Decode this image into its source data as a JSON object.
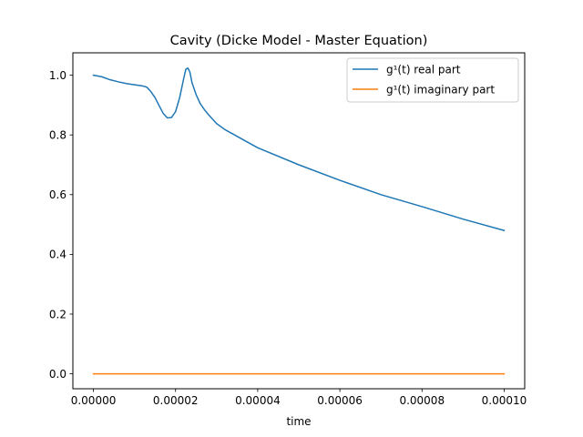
{
  "chart_data": {
    "type": "line",
    "title": "Cavity (Dicke Model - Master Equation)",
    "xlabel": "time",
    "ylabel": "",
    "xlim": [
      -5e-06,
      0.000105
    ],
    "ylim": [
      -0.05,
      1.075
    ],
    "x_ticks": [
      0.0,
      2e-05,
      4e-05,
      6e-05,
      8e-05,
      0.0001
    ],
    "x_tick_labels": [
      "0.00000",
      "0.00002",
      "0.00004",
      "0.00006",
      "0.00008",
      "0.00010"
    ],
    "y_ticks": [
      0.0,
      0.2,
      0.4,
      0.6,
      0.8,
      1.0
    ],
    "y_tick_labels": [
      "0.0",
      "0.2",
      "0.4",
      "0.6",
      "0.8",
      "1.0"
    ],
    "grid": false,
    "legend_position": "top-right",
    "series": [
      {
        "name": "g¹(t) real part",
        "color": "#1f77b4",
        "x": [
          0.0,
          2e-06,
          4e-06,
          6e-06,
          8e-06,
          1e-05,
          1.2e-05,
          1.3e-05,
          1.4e-05,
          1.5e-05,
          1.6e-05,
          1.7e-05,
          1.8e-05,
          1.9e-05,
          2e-05,
          2.1e-05,
          2.2e-05,
          2.25e-05,
          2.3e-05,
          2.35e-05,
          2.4e-05,
          2.5e-05,
          2.6e-05,
          2.7e-05,
          2.8e-05,
          3e-05,
          3.2e-05,
          3.5e-05,
          4e-05,
          5e-05,
          6e-05,
          7e-05,
          8e-05,
          9e-05,
          0.0001
        ],
        "y": [
          1.0,
          0.995,
          0.985,
          0.978,
          0.972,
          0.968,
          0.964,
          0.96,
          0.945,
          0.925,
          0.898,
          0.872,
          0.857,
          0.858,
          0.878,
          0.925,
          0.99,
          1.02,
          1.024,
          1.01,
          0.975,
          0.935,
          0.905,
          0.885,
          0.868,
          0.838,
          0.818,
          0.795,
          0.757,
          0.7,
          0.648,
          0.6,
          0.56,
          0.518,
          0.48
        ]
      },
      {
        "name": "g¹(t) imaginary part",
        "color": "#ff7f0e",
        "x": [
          0.0,
          0.0001
        ],
        "y": [
          0.0,
          0.0
        ]
      }
    ]
  }
}
